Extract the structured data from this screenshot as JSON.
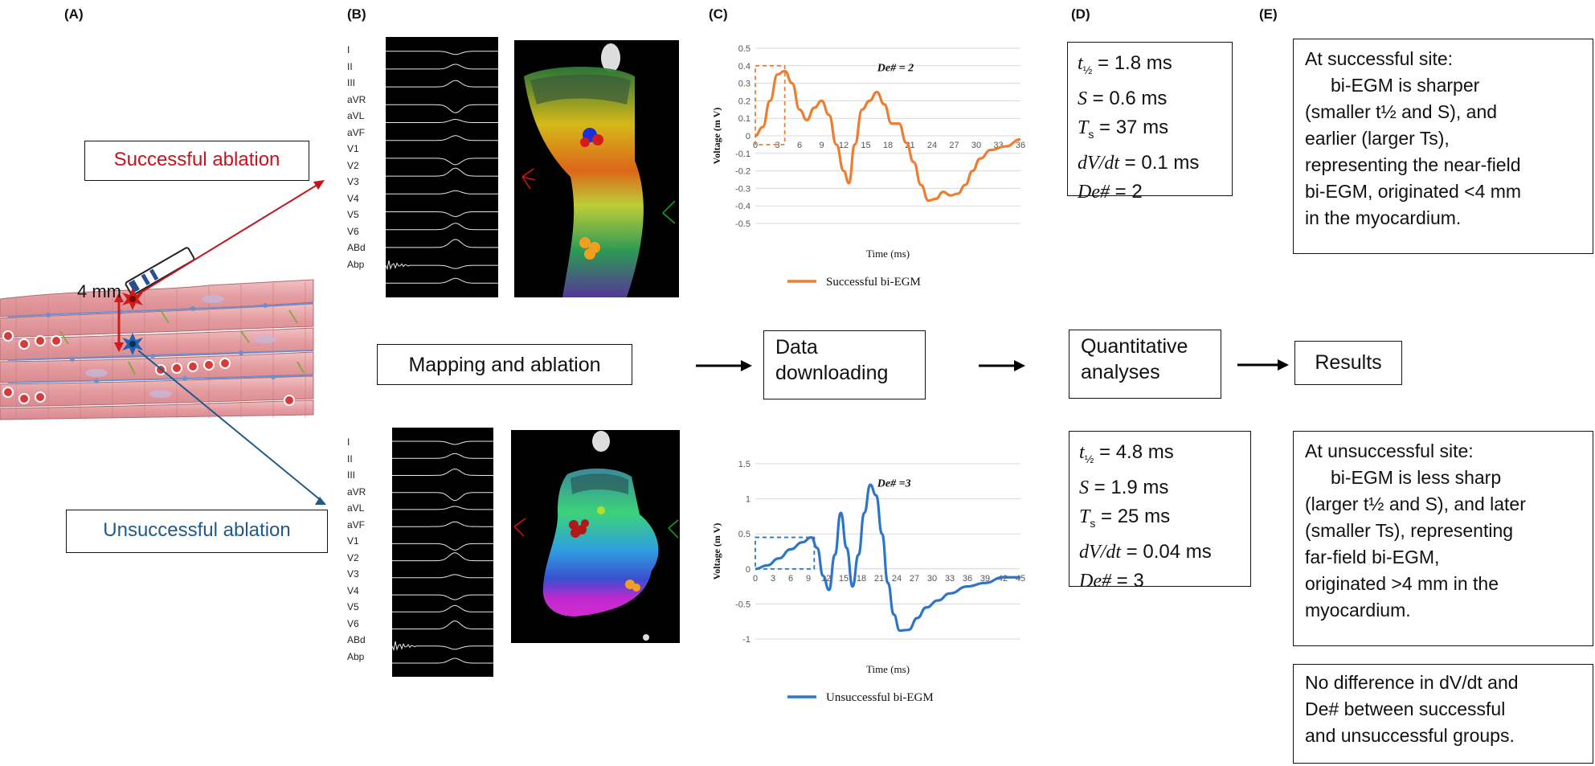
{
  "panels": {
    "a": "(A)",
    "b": "(B)",
    "c": "(C)",
    "d": "(D)",
    "e": "(E)"
  },
  "panel_a": {
    "successful_label": "Successful ablation",
    "unsuccessful_label": "Unsuccessful ablation",
    "distance_label": "4 mm",
    "successful_color": "#c0161c",
    "unsuccessful_color": "#1f5a88",
    "tissue_color": "#e8a3a6"
  },
  "ecg_leads": [
    "I",
    "II",
    "III",
    "aVR",
    "aVL",
    "aVF",
    "V1",
    "V2",
    "V3",
    "V4",
    "V5",
    "V6",
    "ABd",
    "Abp"
  ],
  "flow": {
    "step1": "Mapping and ablation",
    "step2_line1": "Data",
    "step2_line2": "downloading",
    "step3_line1": "Quantitative",
    "step3_line2": "analyses",
    "step4": "Results"
  },
  "chart_data": [
    {
      "type": "line",
      "name": "successful",
      "color": "#ed7d31",
      "legend": "Successful bi-EGM",
      "xlabel": "Time (ms)",
      "ylabel": "Voltage (m V)",
      "annotation": "De# = 2",
      "xlim": [
        0,
        36
      ],
      "ylim": [
        -0.5,
        0.5
      ],
      "xticks": [
        "0",
        "3",
        "6",
        "9",
        "12",
        "15",
        "18",
        "21",
        "24",
        "27",
        "30",
        "33",
        "36"
      ],
      "yticks": [
        "0.5",
        "0.4",
        "0.3",
        "0.2",
        "0.1",
        "0",
        "-0.1",
        "-0.2",
        "-0.3",
        "-0.4",
        "-0.5"
      ],
      "points": [
        [
          0,
          0.0
        ],
        [
          1,
          0.05
        ],
        [
          2,
          0.2
        ],
        [
          3,
          0.35
        ],
        [
          4,
          0.37
        ],
        [
          5,
          0.3
        ],
        [
          6,
          0.15
        ],
        [
          7,
          0.09
        ],
        [
          8,
          0.16
        ],
        [
          9,
          0.2
        ],
        [
          10,
          0.12
        ],
        [
          11,
          -0.05
        ],
        [
          12,
          -0.2
        ],
        [
          12.7,
          -0.27
        ],
        [
          13.5,
          -0.05
        ],
        [
          14.5,
          0.15
        ],
        [
          15.5,
          0.2
        ],
        [
          16.5,
          0.25
        ],
        [
          17.5,
          0.18
        ],
        [
          18.5,
          0.07
        ],
        [
          19.5,
          0.07
        ],
        [
          20.5,
          -0.04
        ],
        [
          21.5,
          -0.15
        ],
        [
          22.5,
          -0.28
        ],
        [
          23.5,
          -0.37
        ],
        [
          24.5,
          -0.36
        ],
        [
          25.5,
          -0.32
        ],
        [
          26.5,
          -0.34
        ],
        [
          27.5,
          -0.33
        ],
        [
          28.5,
          -0.28
        ],
        [
          29.5,
          -0.2
        ],
        [
          30.5,
          -0.13
        ],
        [
          32,
          -0.08
        ],
        [
          34,
          -0.06
        ],
        [
          36,
          -0.02
        ]
      ],
      "highlight": {
        "x0": 0,
        "x1": 4,
        "y0": -0.05,
        "y1": 0.4
      }
    },
    {
      "type": "line",
      "name": "unsuccessful",
      "color": "#2e75c7",
      "legend": "Unsuccessful bi-EGM",
      "xlabel": "Time (ms)",
      "ylabel": "Voltage (m V)",
      "annotation": "De# =3",
      "xlim": [
        0,
        45
      ],
      "ylim": [
        -1,
        1.5
      ],
      "xticks": [
        "0",
        "3",
        "6",
        "9",
        "12",
        "15",
        "18",
        "21",
        "24",
        "27",
        "30",
        "33",
        "36",
        "39",
        "42",
        "45"
      ],
      "yticks": [
        "1.5",
        "1",
        "0.5",
        "0",
        "-0.5",
        "-1"
      ],
      "points": [
        [
          0,
          0.0
        ],
        [
          2,
          0.05
        ],
        [
          4,
          0.15
        ],
        [
          6,
          0.28
        ],
        [
          8,
          0.38
        ],
        [
          9.5,
          0.45
        ],
        [
          10.5,
          0.3
        ],
        [
          11.5,
          -0.1
        ],
        [
          12.5,
          -0.3
        ],
        [
          13.5,
          0.2
        ],
        [
          14.5,
          0.8
        ],
        [
          15.5,
          0.3
        ],
        [
          16.5,
          -0.25
        ],
        [
          17.5,
          0.2
        ],
        [
          18.5,
          0.8
        ],
        [
          19.5,
          1.2
        ],
        [
          20.5,
          1.05
        ],
        [
          21.5,
          0.5
        ],
        [
          22.5,
          -0.2
        ],
        [
          23.5,
          -0.65
        ],
        [
          24.5,
          -0.88
        ],
        [
          26,
          -0.87
        ],
        [
          27.5,
          -0.7
        ],
        [
          29,
          -0.55
        ],
        [
          31,
          -0.45
        ],
        [
          33,
          -0.35
        ],
        [
          36,
          -0.25
        ],
        [
          39,
          -0.2
        ],
        [
          42,
          -0.12
        ],
        [
          45,
          -0.12
        ]
      ],
      "highlight": {
        "x0": 0,
        "x1": 10,
        "y0": 0.0,
        "y1": 0.45
      }
    }
  ],
  "params_success": {
    "t_half": "t",
    "t_half_sub": "½",
    "t_half_val": " = 1.8 ms",
    "S": "S",
    "S_val": " = 0.6 ms",
    "Ts": "T",
    "Ts_sub": "s",
    "Ts_val": " = 37  ms",
    "dvdt": "dV/dt",
    "dvdt_val": " = 0.1 ms",
    "de": "De#",
    "de_val": " = 2"
  },
  "params_unsuccess": {
    "t_half": "t",
    "t_half_sub": "½",
    "t_half_val": " = 4.8 ms",
    "S": "S",
    "S_val": "  = 1.9 ms",
    "Ts": "T",
    "Ts_sub": "s",
    "Ts_val": " =  25 ms",
    "dvdt": "dV/dt",
    "dvdt_val": " = 0.04 ms",
    "de": "De#",
    "de_val": " = 3"
  },
  "results": {
    "success_lines": [
      "At successful site:",
      "     bi-EGM is sharper",
      "(smaller t½ and S), and",
      "earlier (larger Ts),",
      "representing the near-field",
      "bi-EGM, originated <4 mm",
      "in the myocardium."
    ],
    "unsuccess_lines": [
      "At unsuccessful site:",
      "     bi-EGM is less sharp",
      "(larger t½ and S), and later",
      "(smaller Ts), representing",
      "far-field bi-EGM,",
      "originated >4 mm in the",
      "myocardium."
    ],
    "nodiff_lines": [
      "No difference in dV/dt and",
      "De# between successful",
      "and unsuccessful groups."
    ]
  }
}
